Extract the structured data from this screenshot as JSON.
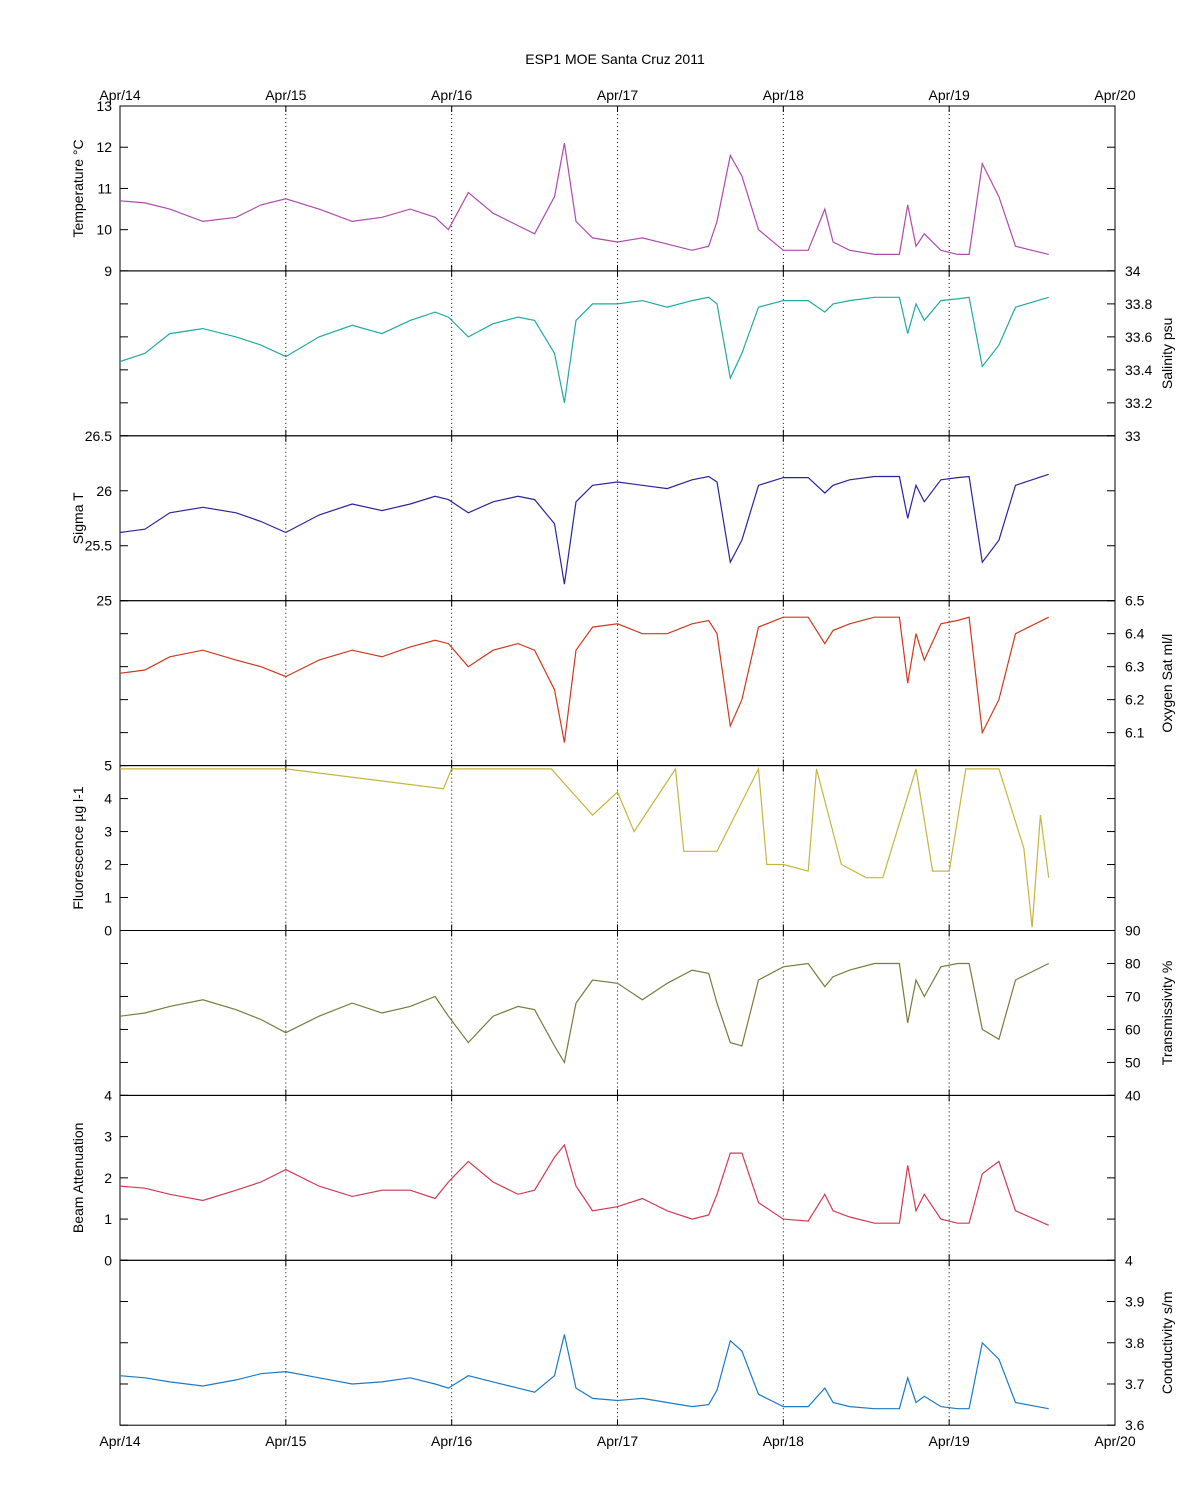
{
  "title": "ESP1 MOE Santa Cruz   2011",
  "x_axis": {
    "ticks": [
      "Apr/14",
      "Apr/15",
      "Apr/16",
      "Apr/17",
      "Apr/18",
      "Apr/19",
      "Apr/20"
    ],
    "range_days": [
      0,
      6
    ]
  },
  "chart_data": [
    {
      "type": "line",
      "ylabel": "Temperature °C",
      "axis_side": "left",
      "ylim": [
        9,
        13
      ],
      "yticks": [
        9,
        10,
        11,
        12,
        13
      ],
      "color": "#B04AAE",
      "series": [
        {
          "x": [
            0,
            0.15,
            0.3,
            0.5,
            0.7,
            0.85,
            1.0,
            1.2,
            1.4,
            1.58,
            1.75,
            1.9,
            1.98,
            2.1,
            2.25,
            2.4,
            2.5,
            2.62,
            2.68,
            2.75,
            2.85,
            3.0,
            3.15,
            3.3,
            3.45,
            3.55,
            3.6,
            3.68,
            3.75,
            3.85,
            4.0,
            4.15,
            4.25,
            4.3,
            4.4,
            4.55,
            4.7,
            4.75,
            4.8,
            4.85,
            4.95,
            5.05,
            5.12,
            5.2,
            5.3,
            5.4,
            5.6
          ],
          "y": [
            10.7,
            10.65,
            10.5,
            10.2,
            10.3,
            10.6,
            10.75,
            10.5,
            10.2,
            10.3,
            10.5,
            10.3,
            10.0,
            10.9,
            10.4,
            10.1,
            9.9,
            10.8,
            12.1,
            10.2,
            9.8,
            9.7,
            9.8,
            9.65,
            9.5,
            9.6,
            10.2,
            11.8,
            11.3,
            10.0,
            9.5,
            9.5,
            10.5,
            9.7,
            9.5,
            9.4,
            9.4,
            10.6,
            9.6,
            9.9,
            9.5,
            9.4,
            9.4,
            11.6,
            10.8,
            9.6,
            9.4
          ]
        }
      ]
    },
    {
      "type": "line",
      "ylabel": "Salinity psu",
      "axis_side": "right",
      "ylim": [
        33,
        34
      ],
      "yticks": [
        33,
        33.2,
        33.4,
        33.6,
        33.8,
        34
      ],
      "color": "#20A9A5",
      "series": [
        {
          "x": [
            0,
            0.15,
            0.3,
            0.5,
            0.7,
            0.85,
            1.0,
            1.2,
            1.4,
            1.58,
            1.75,
            1.9,
            1.98,
            2.1,
            2.25,
            2.4,
            2.5,
            2.62,
            2.68,
            2.75,
            2.85,
            3.0,
            3.15,
            3.3,
            3.45,
            3.55,
            3.6,
            3.68,
            3.75,
            3.85,
            4.0,
            4.15,
            4.25,
            4.3,
            4.4,
            4.55,
            4.7,
            4.75,
            4.8,
            4.85,
            4.95,
            5.05,
            5.12,
            5.2,
            5.3,
            5.4,
            5.6
          ],
          "y": [
            33.45,
            33.5,
            33.62,
            33.65,
            33.6,
            33.55,
            33.48,
            33.6,
            33.67,
            33.62,
            33.7,
            33.75,
            33.72,
            33.6,
            33.68,
            33.72,
            33.7,
            33.5,
            33.2,
            33.7,
            33.8,
            33.8,
            33.82,
            33.78,
            33.82,
            33.84,
            33.8,
            33.35,
            33.5,
            33.78,
            33.82,
            33.82,
            33.75,
            33.8,
            33.82,
            33.84,
            33.84,
            33.62,
            33.8,
            33.7,
            33.82,
            33.83,
            33.84,
            33.42,
            33.55,
            33.78,
            33.84
          ]
        }
      ]
    },
    {
      "type": "line",
      "ylabel": "Sigma T",
      "axis_side": "left",
      "ylim": [
        25,
        26.5
      ],
      "yticks": [
        25,
        25.5,
        26,
        26.5
      ],
      "color": "#2A249C",
      "series": [
        {
          "x": [
            0,
            0.15,
            0.3,
            0.5,
            0.7,
            0.85,
            1.0,
            1.2,
            1.4,
            1.58,
            1.75,
            1.9,
            1.98,
            2.1,
            2.25,
            2.4,
            2.5,
            2.62,
            2.68,
            2.75,
            2.85,
            3.0,
            3.15,
            3.3,
            3.45,
            3.55,
            3.6,
            3.68,
            3.75,
            3.85,
            4.0,
            4.15,
            4.25,
            4.3,
            4.4,
            4.55,
            4.7,
            4.75,
            4.8,
            4.85,
            4.95,
            5.05,
            5.12,
            5.2,
            5.3,
            5.4,
            5.6
          ],
          "y": [
            25.62,
            25.65,
            25.8,
            25.85,
            25.8,
            25.72,
            25.62,
            25.78,
            25.88,
            25.82,
            25.88,
            25.95,
            25.92,
            25.8,
            25.9,
            25.95,
            25.92,
            25.7,
            25.15,
            25.9,
            26.05,
            26.08,
            26.05,
            26.02,
            26.1,
            26.13,
            26.08,
            25.35,
            25.55,
            26.05,
            26.12,
            26.12,
            25.98,
            26.05,
            26.1,
            26.13,
            26.13,
            25.75,
            26.05,
            25.9,
            26.1,
            26.12,
            26.13,
            25.35,
            25.55,
            26.05,
            26.15
          ]
        }
      ]
    },
    {
      "type": "line",
      "ylabel": "Oxygen Sat ml/l",
      "axis_side": "right",
      "ylim": [
        6,
        6.5
      ],
      "yticks": [
        6.1,
        6.2,
        6.3,
        6.4,
        6.5
      ],
      "color": "#D1381E",
      "series": [
        {
          "x": [
            0,
            0.15,
            0.3,
            0.5,
            0.7,
            0.85,
            1.0,
            1.2,
            1.4,
            1.58,
            1.75,
            1.9,
            1.98,
            2.1,
            2.25,
            2.4,
            2.5,
            2.62,
            2.68,
            2.75,
            2.85,
            3.0,
            3.15,
            3.3,
            3.45,
            3.55,
            3.6,
            3.68,
            3.75,
            3.85,
            4.0,
            4.15,
            4.25,
            4.3,
            4.4,
            4.55,
            4.7,
            4.75,
            4.8,
            4.85,
            4.95,
            5.05,
            5.12,
            5.2,
            5.3,
            5.4,
            5.6
          ],
          "y": [
            6.28,
            6.29,
            6.33,
            6.35,
            6.32,
            6.3,
            6.27,
            6.32,
            6.35,
            6.33,
            6.36,
            6.38,
            6.37,
            6.3,
            6.35,
            6.37,
            6.35,
            6.23,
            6.07,
            6.35,
            6.42,
            6.43,
            6.4,
            6.4,
            6.43,
            6.44,
            6.4,
            6.12,
            6.2,
            6.42,
            6.45,
            6.45,
            6.37,
            6.41,
            6.43,
            6.45,
            6.45,
            6.25,
            6.4,
            6.32,
            6.43,
            6.44,
            6.45,
            6.1,
            6.2,
            6.4,
            6.45
          ]
        }
      ]
    },
    {
      "type": "line",
      "ylabel": "Fluorescence µg l-1",
      "axis_side": "left",
      "ylim": [
        0,
        5
      ],
      "yticks": [
        0,
        1,
        2,
        3,
        4,
        5
      ],
      "color": "#C7B53D",
      "series": [
        {
          "x": [
            0,
            0.8,
            1.0,
            1.95,
            2.0,
            2.3,
            2.6,
            2.85,
            3.0,
            3.1,
            3.35,
            3.4,
            3.5,
            3.6,
            3.85,
            3.9,
            4.0,
            4.15,
            4.2,
            4.35,
            4.5,
            4.6,
            4.8,
            4.9,
            5.0,
            5.1,
            5.3,
            5.45,
            5.5,
            5.55,
            5.6
          ],
          "y": [
            4.9,
            4.9,
            4.9,
            4.3,
            4.9,
            4.9,
            4.9,
            3.5,
            4.2,
            3.0,
            4.9,
            2.4,
            2.4,
            2.4,
            4.9,
            2.0,
            2.0,
            1.8,
            4.9,
            2.0,
            1.6,
            1.6,
            4.9,
            1.8,
            1.8,
            4.9,
            4.9,
            2.5,
            0.1,
            3.5,
            1.6
          ]
        }
      ]
    },
    {
      "type": "line",
      "ylabel": "Transmissivity %",
      "axis_side": "right",
      "ylim": [
        40,
        90
      ],
      "yticks": [
        40,
        50,
        60,
        70,
        80,
        90
      ],
      "color": "#7A7A3E",
      "series": [
        {
          "x": [
            0,
            0.15,
            0.3,
            0.5,
            0.7,
            0.85,
            1.0,
            1.2,
            1.4,
            1.58,
            1.75,
            1.9,
            1.98,
            2.1,
            2.25,
            2.4,
            2.5,
            2.62,
            2.68,
            2.75,
            2.85,
            3.0,
            3.15,
            3.3,
            3.45,
            3.55,
            3.6,
            3.68,
            3.75,
            3.85,
            4.0,
            4.15,
            4.25,
            4.3,
            4.4,
            4.55,
            4.7,
            4.75,
            4.8,
            4.85,
            4.95,
            5.05,
            5.12,
            5.2,
            5.3,
            5.4,
            5.6
          ],
          "y": [
            64,
            65,
            67,
            69,
            66,
            63,
            59,
            64,
            68,
            65,
            67,
            70,
            64,
            56,
            64,
            67,
            66,
            55,
            50,
            68,
            75,
            74,
            69,
            74,
            78,
            77,
            68,
            56,
            55,
            75,
            79,
            80,
            73,
            76,
            78,
            80,
            80,
            62,
            75,
            70,
            79,
            80,
            80,
            60,
            57,
            75,
            80
          ]
        }
      ]
    },
    {
      "type": "line",
      "ylabel": "Beam Attenuation",
      "axis_side": "left",
      "ylim": [
        0,
        4
      ],
      "yticks": [
        0,
        1,
        2,
        3,
        4
      ],
      "color": "#D23A52",
      "series": [
        {
          "x": [
            0,
            0.15,
            0.3,
            0.5,
            0.7,
            0.85,
            1.0,
            1.2,
            1.4,
            1.58,
            1.75,
            1.9,
            1.98,
            2.1,
            2.25,
            2.4,
            2.5,
            2.62,
            2.68,
            2.75,
            2.85,
            3.0,
            3.15,
            3.3,
            3.45,
            3.55,
            3.6,
            3.68,
            3.75,
            3.85,
            4.0,
            4.15,
            4.25,
            4.3,
            4.4,
            4.55,
            4.7,
            4.75,
            4.8,
            4.85,
            4.95,
            5.05,
            5.12,
            5.2,
            5.3,
            5.4,
            5.6
          ],
          "y": [
            1.8,
            1.75,
            1.6,
            1.45,
            1.7,
            1.9,
            2.2,
            1.8,
            1.55,
            1.7,
            1.7,
            1.5,
            1.9,
            2.4,
            1.9,
            1.6,
            1.7,
            2.5,
            2.8,
            1.8,
            1.2,
            1.3,
            1.5,
            1.2,
            1.0,
            1.1,
            1.6,
            2.6,
            2.6,
            1.4,
            1.0,
            0.95,
            1.6,
            1.2,
            1.05,
            0.9,
            0.9,
            2.3,
            1.2,
            1.6,
            1.0,
            0.9,
            0.9,
            2.1,
            2.4,
            1.2,
            0.85
          ]
        }
      ]
    },
    {
      "type": "line",
      "ylabel": "Conductivity s/m",
      "axis_side": "right",
      "ylim": [
        3.6,
        4
      ],
      "yticks": [
        3.6,
        3.7,
        3.8,
        3.9,
        4
      ],
      "color": "#1A7AC9",
      "series": [
        {
          "x": [
            0,
            0.15,
            0.3,
            0.5,
            0.7,
            0.85,
            1.0,
            1.2,
            1.4,
            1.58,
            1.75,
            1.9,
            1.98,
            2.1,
            2.25,
            2.4,
            2.5,
            2.62,
            2.68,
            2.75,
            2.85,
            3.0,
            3.15,
            3.3,
            3.45,
            3.55,
            3.6,
            3.68,
            3.75,
            3.85,
            4.0,
            4.15,
            4.25,
            4.3,
            4.4,
            4.55,
            4.7,
            4.75,
            4.8,
            4.85,
            4.95,
            5.05,
            5.12,
            5.2,
            5.3,
            5.4,
            5.6
          ],
          "y": [
            3.72,
            3.715,
            3.705,
            3.695,
            3.71,
            3.725,
            3.73,
            3.715,
            3.7,
            3.705,
            3.715,
            3.7,
            3.69,
            3.72,
            3.705,
            3.69,
            3.68,
            3.72,
            3.82,
            3.69,
            3.665,
            3.66,
            3.665,
            3.655,
            3.645,
            3.65,
            3.685,
            3.805,
            3.78,
            3.675,
            3.645,
            3.645,
            3.69,
            3.655,
            3.645,
            3.64,
            3.64,
            3.715,
            3.655,
            3.67,
            3.645,
            3.64,
            3.64,
            3.8,
            3.76,
            3.655,
            3.64
          ]
        }
      ]
    }
  ]
}
